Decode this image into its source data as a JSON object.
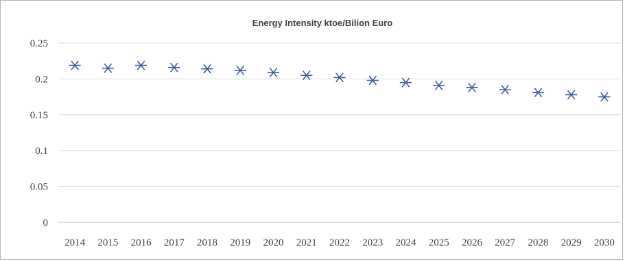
{
  "chart_data": {
    "type": "scatter",
    "title": "Energy Intensity ktoe/Bilion Euro",
    "xlabel": "",
    "ylabel": "",
    "x": [
      "2014",
      "2015",
      "2016",
      "2017",
      "2018",
      "2019",
      "2020",
      "2021",
      "2022",
      "2023",
      "2024",
      "2025",
      "2026",
      "2027",
      "2028",
      "2029",
      "2030"
    ],
    "series": [
      {
        "values": [
          0.219,
          0.215,
          0.219,
          0.216,
          0.214,
          0.212,
          0.209,
          0.205,
          0.202,
          0.198,
          0.195,
          0.191,
          0.188,
          0.185,
          0.181,
          0.178,
          0.175
        ]
      }
    ],
    "ylim": [
      0,
      0.25
    ],
    "yticks": [
      "0",
      "0.05",
      "0.1",
      "0.15",
      "0.2",
      "0.25"
    ],
    "grid": true,
    "legend": "none",
    "marker": "asterisk",
    "colors": {
      "marker": "#3c5f9a",
      "grid": "#d9d9d9",
      "text": "#404040"
    }
  }
}
